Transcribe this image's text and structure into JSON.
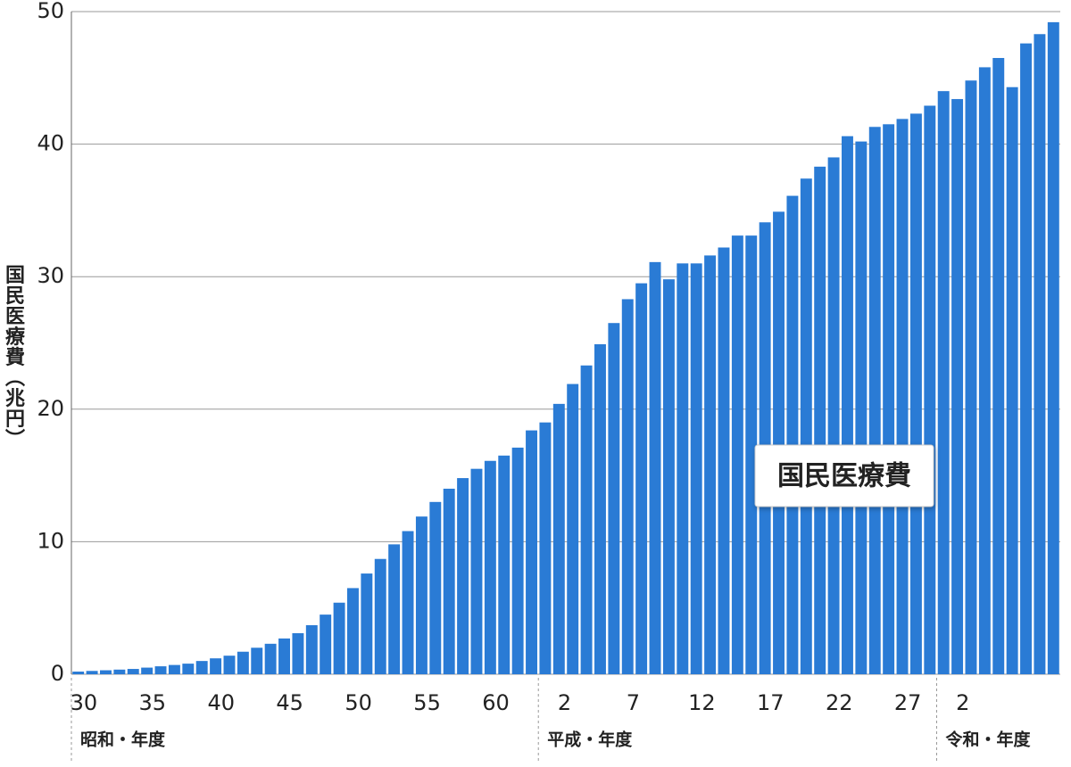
{
  "chart_data": {
    "type": "bar",
    "y_label": "国民医療費（兆円）",
    "series_name": "国民医療費",
    "color": "#2a7bd5",
    "ylim": [
      0,
      50
    ],
    "yticks": [
      0,
      10,
      20,
      30,
      40,
      50
    ],
    "grid": true,
    "groups": [
      {
        "label": "昭和・年度",
        "categories": [
          "30",
          null,
          null,
          null,
          null,
          "35",
          null,
          null,
          null,
          null,
          "40",
          null,
          null,
          null,
          null,
          "45",
          null,
          null,
          null,
          null,
          "50",
          null,
          null,
          null,
          null,
          "55",
          null,
          null,
          null,
          null,
          "60",
          null,
          null,
          null
        ],
        "values": [
          0.2,
          0.25,
          0.3,
          0.35,
          0.4,
          0.5,
          0.6,
          0.7,
          0.8,
          1.0,
          1.2,
          1.4,
          1.7,
          2.0,
          2.3,
          2.7,
          3.1,
          3.7,
          4.5,
          5.4,
          6.5,
          7.6,
          8.7,
          9.8,
          10.8,
          11.9,
          13.0,
          14.0,
          14.8,
          15.5,
          16.1,
          16.5,
          17.1,
          18.4
        ]
      },
      {
        "label": "平成・年度",
        "categories": [
          null,
          "2",
          null,
          null,
          null,
          null,
          "7",
          null,
          null,
          null,
          null,
          "12",
          null,
          null,
          null,
          null,
          "17",
          null,
          null,
          null,
          null,
          "22",
          null,
          null,
          null,
          null,
          "27",
          null,
          null
        ],
        "values": [
          19.0,
          20.4,
          21.9,
          23.3,
          24.9,
          26.5,
          28.3,
          29.5,
          31.1,
          29.8,
          31.0,
          31.0,
          31.6,
          32.2,
          33.1,
          33.1,
          34.1,
          34.9,
          36.1,
          37.4,
          38.3,
          39.0,
          40.6,
          40.2,
          41.3,
          41.5,
          41.9,
          42.3,
          42.9
        ]
      },
      {
        "label": "令和・年度",
        "categories": [
          null,
          "2",
          null,
          null,
          null,
          null,
          null,
          null,
          null
        ],
        "values": [
          44.0,
          43.4,
          44.8,
          45.8,
          46.5,
          44.3,
          47.6,
          48.3,
          49.2
        ]
      }
    ]
  }
}
